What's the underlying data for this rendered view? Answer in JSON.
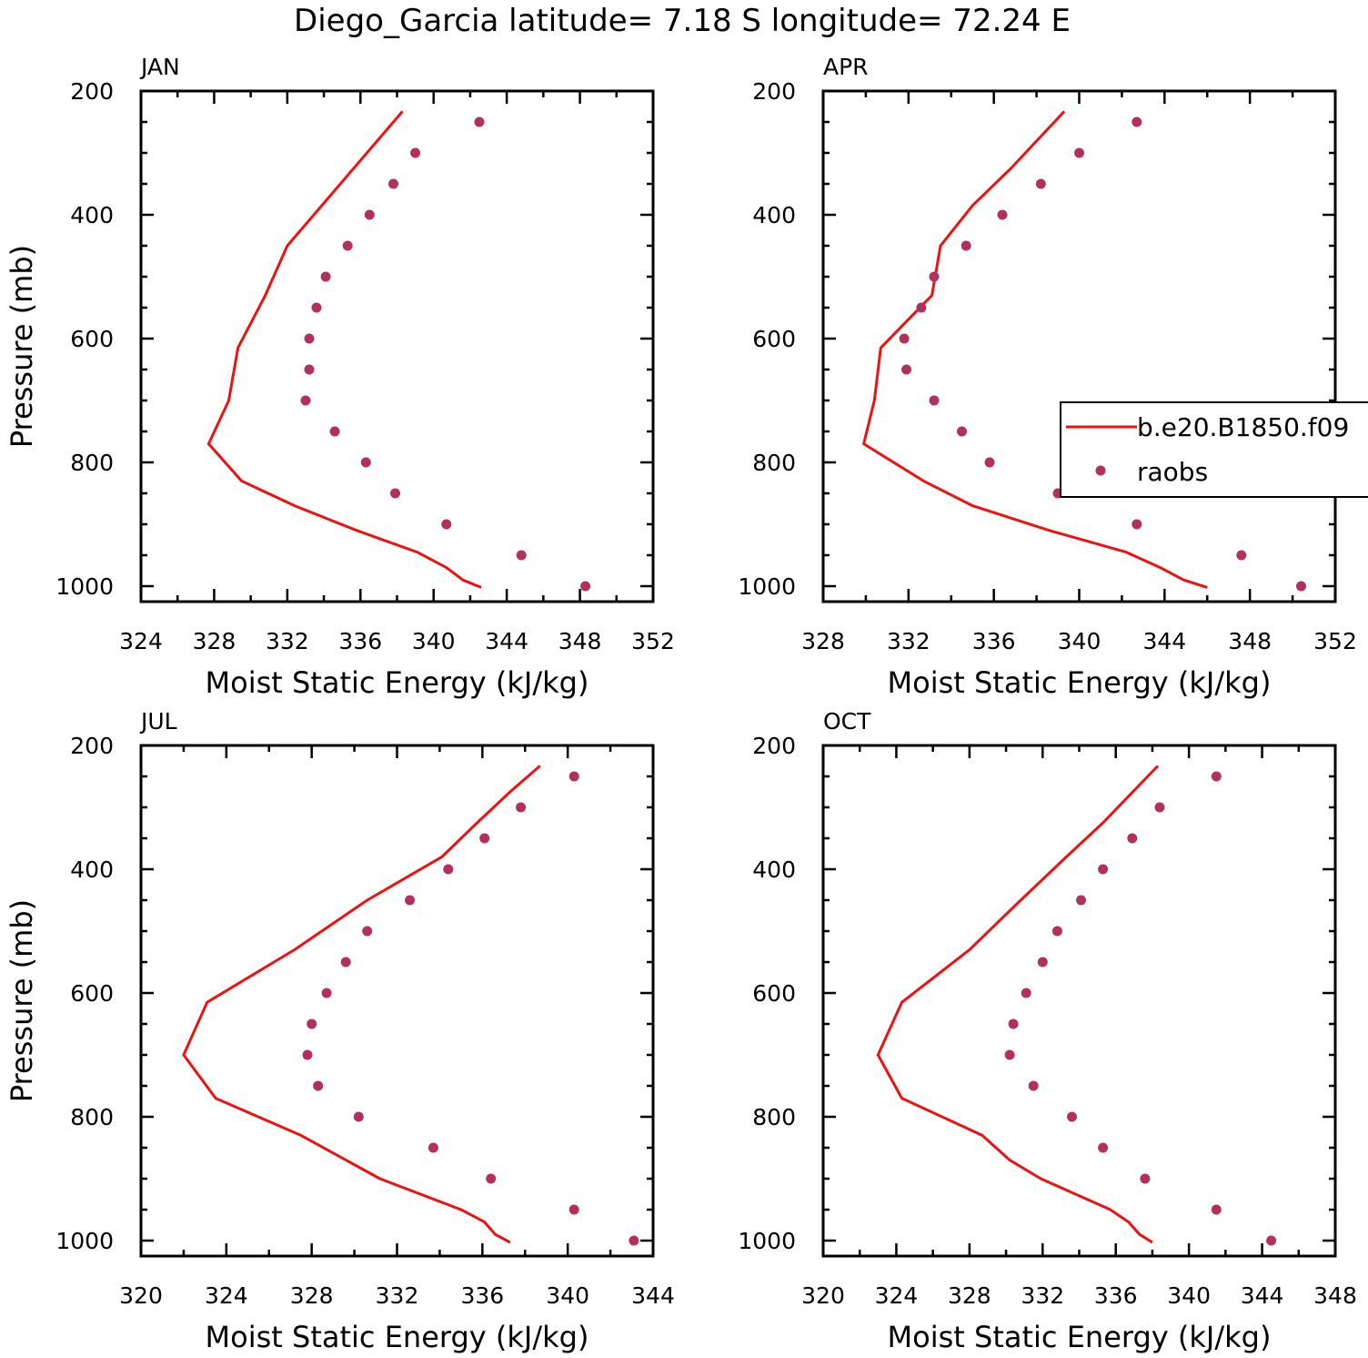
{
  "title": "Diego_Garcia  latitude= 7.18 S longitude= 72.24 E",
  "legend": {
    "model_label": "b.e20.B1850.f09",
    "obs_label": "raobs",
    "model_color": "#ee1111",
    "obs_color": "#b3305e"
  },
  "chart_data": [
    {
      "type": "line+scatter",
      "panel": "JAN",
      "xlabel": "Moist Static Energy (kJ/kg)",
      "ylabel": "Pressure (mb)",
      "xlim": [
        324,
        352
      ],
      "xticks": [
        324,
        328,
        332,
        336,
        340,
        344,
        348,
        352
      ],
      "ylim": [
        200,
        1000
      ],
      "yticks": [
        200,
        400,
        600,
        800,
        1000
      ],
      "model": {
        "name": "b.e20.B1850.f09",
        "p": [
          233,
          450,
          530,
          615,
          700,
          770,
          830,
          870,
          910,
          945,
          970,
          990,
          1002
        ],
        "mse": [
          338.3,
          332.0,
          330.8,
          329.3,
          328.8,
          327.7,
          329.5,
          332.4,
          335.8,
          339.1,
          340.7,
          341.6,
          342.6
        ]
      },
      "obs": {
        "name": "raobs",
        "p": [
          250,
          300,
          350,
          400,
          450,
          500,
          550,
          600,
          650,
          700,
          750,
          800,
          850,
          900,
          950,
          1000
        ],
        "mse": [
          342.5,
          339.0,
          337.8,
          336.5,
          335.3,
          334.1,
          333.6,
          333.2,
          333.2,
          333.0,
          334.6,
          336.3,
          337.9,
          340.7,
          344.8,
          348.3
        ]
      }
    },
    {
      "type": "line+scatter",
      "panel": "APR",
      "xlabel": "Moist Static Energy (kJ/kg)",
      "ylabel": "",
      "xlim": [
        328,
        352
      ],
      "xticks": [
        328,
        332,
        336,
        340,
        344,
        348,
        352
      ],
      "ylim": [
        200,
        1000
      ],
      "yticks": [
        200,
        400,
        600,
        800,
        1000
      ],
      "model": {
        "name": "b.e20.B1850.f09",
        "p": [
          233,
          325,
          385,
          450,
          530,
          615,
          700,
          770,
          830,
          870,
          910,
          945,
          970,
          990,
          1002
        ],
        "mse": [
          339.3,
          336.8,
          335.0,
          333.5,
          333.1,
          330.7,
          330.4,
          329.9,
          332.7,
          335.0,
          338.6,
          342.2,
          343.8,
          344.9,
          346.0
        ]
      },
      "obs": {
        "name": "raobs",
        "p": [
          250,
          300,
          350,
          400,
          450,
          500,
          550,
          600,
          650,
          700,
          750,
          800,
          850,
          900,
          950,
          1000
        ],
        "mse": [
          342.7,
          340.0,
          338.2,
          336.4,
          334.7,
          333.2,
          332.6,
          331.8,
          331.9,
          333.2,
          334.5,
          335.8,
          339.0,
          342.7,
          347.6,
          350.4
        ]
      }
    },
    {
      "type": "line+scatter",
      "panel": "JUL",
      "xlabel": "Moist Static Energy (kJ/kg)",
      "ylabel": "Pressure (mb)",
      "xlim": [
        320,
        344
      ],
      "xticks": [
        320,
        324,
        328,
        332,
        336,
        340,
        344
      ],
      "ylim": [
        200,
        1000
      ],
      "yticks": [
        200,
        400,
        600,
        800,
        1000
      ],
      "model": {
        "name": "b.e20.B1850.f09",
        "p": [
          233,
          275,
          330,
          380,
          450,
          530,
          615,
          700,
          770,
          830,
          900,
          950,
          970,
          990,
          1003
        ],
        "mse": [
          338.7,
          337.3,
          335.6,
          334.1,
          330.6,
          327.2,
          323.1,
          322.0,
          323.5,
          327.5,
          331.2,
          335.0,
          336.1,
          336.6,
          337.3
        ]
      },
      "obs": {
        "name": "raobs",
        "p": [
          250,
          300,
          350,
          400,
          450,
          500,
          550,
          600,
          650,
          700,
          750,
          800,
          850,
          900,
          950,
          1000
        ],
        "mse": [
          340.3,
          337.8,
          336.1,
          334.4,
          332.6,
          330.6,
          329.6,
          328.7,
          328.0,
          327.8,
          328.3,
          330.2,
          333.7,
          336.4,
          340.3,
          343.1
        ]
      }
    },
    {
      "type": "line+scatter",
      "panel": "OCT",
      "xlabel": "Moist Static Energy (kJ/kg)",
      "ylabel": "",
      "xlim": [
        320,
        348
      ],
      "xticks": [
        320,
        324,
        328,
        332,
        336,
        340,
        344,
        348
      ],
      "ylim": [
        200,
        1000
      ],
      "yticks": [
        200,
        400,
        600,
        800,
        1000
      ],
      "model": {
        "name": "b.e20.B1850.f09",
        "p": [
          233,
          325,
          380,
          450,
          530,
          615,
          700,
          770,
          830,
          870,
          900,
          950,
          970,
          990,
          1003
        ],
        "mse": [
          338.3,
          335.3,
          333.3,
          330.8,
          328.0,
          324.3,
          323.0,
          324.3,
          328.7,
          330.2,
          331.9,
          335.7,
          336.7,
          337.3,
          338.0
        ]
      },
      "obs": {
        "name": "raobs",
        "p": [
          250,
          300,
          350,
          400,
          450,
          500,
          550,
          600,
          650,
          700,
          750,
          800,
          850,
          900,
          950,
          1000
        ],
        "mse": [
          341.5,
          338.4,
          336.9,
          335.3,
          334.1,
          332.8,
          332.0,
          331.1,
          330.4,
          330.2,
          331.5,
          333.6,
          335.3,
          337.6,
          341.5,
          344.5
        ]
      }
    }
  ]
}
